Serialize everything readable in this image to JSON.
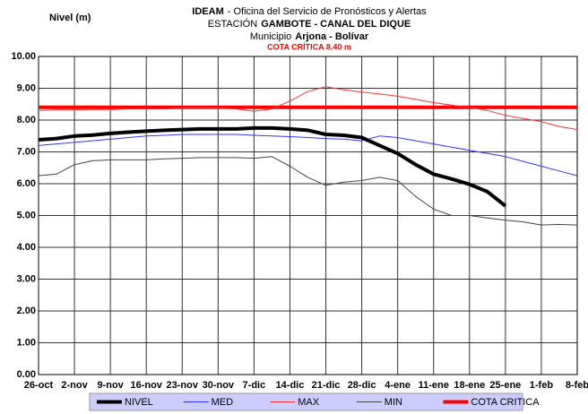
{
  "chart_data": {
    "type": "line",
    "header": [
      [
        "IDEAM",
        "- Oficina del Servicio de Pronósticos y Alertas"
      ],
      [
        "ESTACIÓN",
        "GAMBOTE - CANAL DEL DIQUE"
      ],
      [
        "Municipio",
        "Arjona - Bolívar"
      ]
    ],
    "subtitle": "COTA CRÍTICA 8.40 m",
    "y_label": "Nivel (m)",
    "categories": [
      "26-oct",
      null,
      "2-nov",
      null,
      "9-nov",
      null,
      "16-nov",
      null,
      "23-nov",
      null,
      "30-nov",
      null,
      "7-dic",
      null,
      "14-dic",
      null,
      "21-dic",
      null,
      "28-dic",
      null,
      "4-ene",
      null,
      "11-ene",
      null,
      "18-ene",
      null,
      "25-ene",
      null,
      "1-feb",
      null,
      "8-feb"
    ],
    "ylim": [
      0,
      10
    ],
    "yticks": [
      {
        "value": 0,
        "label": "0.00"
      },
      {
        "value": 1,
        "label": "1.00"
      },
      {
        "value": 2,
        "label": "2.00"
      },
      {
        "value": 3,
        "label": "3.00"
      },
      {
        "value": 4,
        "label": "4.00"
      },
      {
        "value": 5,
        "label": "5.00"
      },
      {
        "value": 6,
        "label": "6.00"
      },
      {
        "value": 7,
        "label": "7.00"
      },
      {
        "value": 8,
        "label": "8.00"
      },
      {
        "value": 9,
        "label": "9.00"
      },
      {
        "value": 10,
        "label": "10.00"
      }
    ],
    "grid": true,
    "legend": "bottom",
    "series": [
      {
        "name": "NIVEL",
        "color": "#000000",
        "width": 4,
        "values": [
          7.38,
          7.42,
          7.5,
          7.53,
          7.58,
          7.62,
          7.65,
          7.68,
          7.7,
          7.72,
          7.72,
          7.72,
          7.75,
          7.75,
          7.72,
          7.68,
          7.55,
          7.52,
          7.45,
          7.2,
          6.95,
          6.6,
          6.3,
          6.15,
          5.98,
          5.75,
          5.3,
          null,
          null,
          null,
          null
        ]
      },
      {
        "name": "MED",
        "color": "#3333ff",
        "width": 1,
        "values": [
          7.2,
          7.25,
          7.3,
          7.35,
          7.4,
          7.45,
          7.5,
          7.52,
          7.55,
          7.55,
          7.55,
          7.55,
          7.52,
          7.5,
          7.48,
          7.45,
          7.42,
          7.4,
          7.35,
          7.5,
          7.45,
          7.35,
          7.25,
          7.15,
          7.05,
          6.95,
          6.85,
          6.7,
          6.55,
          6.4,
          6.25
        ]
      },
      {
        "name": "MAX",
        "color": "#ff3333",
        "width": 1,
        "values": [
          8.3,
          8.32,
          8.32,
          8.33,
          8.33,
          8.35,
          8.35,
          8.35,
          8.38,
          8.38,
          8.38,
          8.35,
          8.28,
          8.35,
          8.6,
          8.9,
          9.05,
          8.95,
          8.88,
          8.82,
          8.75,
          8.65,
          8.55,
          8.47,
          8.4,
          8.3,
          8.15,
          8.05,
          7.95,
          7.8,
          7.7
        ]
      },
      {
        "name": "MIN",
        "color": "#444444",
        "width": 1,
        "values": [
          6.25,
          6.3,
          6.6,
          6.72,
          6.75,
          6.75,
          6.75,
          6.78,
          6.8,
          6.82,
          6.82,
          6.82,
          6.8,
          6.85,
          6.55,
          6.2,
          5.95,
          6.05,
          6.1,
          6.2,
          6.1,
          5.6,
          5.2,
          5.0,
          5.0,
          4.92,
          4.85,
          4.8,
          4.7,
          4.72,
          4.7
        ]
      },
      {
        "name": "COTA CRITICA",
        "color": "#ff0000",
        "width": 4,
        "values": [
          8.4,
          8.4,
          8.4,
          8.4,
          8.4,
          8.4,
          8.4,
          8.4,
          8.4,
          8.4,
          8.4,
          8.4,
          8.4,
          8.4,
          8.4,
          8.4,
          8.4,
          8.4,
          8.4,
          8.4,
          8.4,
          8.4,
          8.4,
          8.4,
          8.4,
          8.4,
          8.4,
          8.4,
          8.4,
          8.4,
          8.4
        ]
      }
    ]
  }
}
